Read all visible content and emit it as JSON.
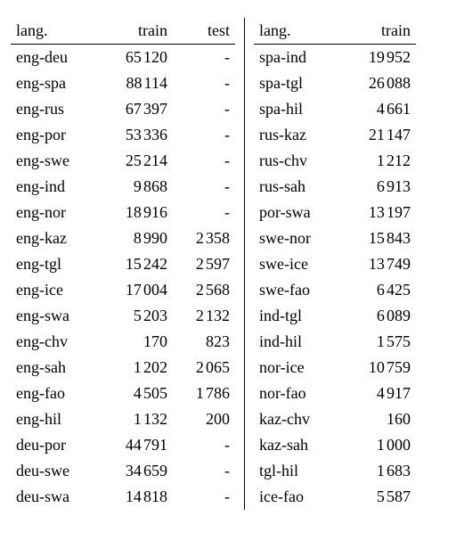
{
  "colors": {
    "text": "#000000",
    "rule": "#000000",
    "background": "#ffffff"
  },
  "typography": {
    "font_family": "Times New Roman",
    "fontsize_pt": 14
  },
  "layout": {
    "two_column": true,
    "left_cols": [
      "lang.",
      "train",
      "test"
    ],
    "right_cols": [
      "lang.",
      "train"
    ]
  },
  "headers": {
    "lang_left": "lang.",
    "train_left": "train",
    "test_left": "test",
    "lang_right": "lang.",
    "train_right": "train"
  },
  "thousand_separator": "thin-space",
  "left": [
    {
      "lang": "eng-deu",
      "train": 65120,
      "test": null
    },
    {
      "lang": "eng-spa",
      "train": 88114,
      "test": null
    },
    {
      "lang": "eng-rus",
      "train": 67397,
      "test": null
    },
    {
      "lang": "eng-por",
      "train": 53336,
      "test": null
    },
    {
      "lang": "eng-swe",
      "train": 25214,
      "test": null
    },
    {
      "lang": "eng-ind",
      "train": 9868,
      "test": null
    },
    {
      "lang": "eng-nor",
      "train": 18916,
      "test": null
    },
    {
      "lang": "eng-kaz",
      "train": 8990,
      "test": 2358
    },
    {
      "lang": "eng-tgl",
      "train": 15242,
      "test": 2597
    },
    {
      "lang": "eng-ice",
      "train": 17004,
      "test": 2568
    },
    {
      "lang": "eng-swa",
      "train": 5203,
      "test": 2132
    },
    {
      "lang": "eng-chv",
      "train": 170,
      "test": 823
    },
    {
      "lang": "eng-sah",
      "train": 1202,
      "test": 2065
    },
    {
      "lang": "eng-fao",
      "train": 4505,
      "test": 1786
    },
    {
      "lang": "eng-hil",
      "train": 1132,
      "test": 200
    },
    {
      "lang": "deu-por",
      "train": 44791,
      "test": null
    },
    {
      "lang": "deu-swe",
      "train": 34659,
      "test": null
    },
    {
      "lang": "deu-swa",
      "train": 14818,
      "test": null
    }
  ],
  "right": [
    {
      "lang": "spa-ind",
      "train": 19952
    },
    {
      "lang": "spa-tgl",
      "train": 26088
    },
    {
      "lang": "spa-hil",
      "train": 4661
    },
    {
      "lang": "rus-kaz",
      "train": 21147
    },
    {
      "lang": "rus-chv",
      "train": 1212
    },
    {
      "lang": "rus-sah",
      "train": 6913
    },
    {
      "lang": "por-swa",
      "train": 13197
    },
    {
      "lang": "swe-nor",
      "train": 15843
    },
    {
      "lang": "swe-ice",
      "train": 13749
    },
    {
      "lang": "swe-fao",
      "train": 6425
    },
    {
      "lang": "ind-tgl",
      "train": 6089
    },
    {
      "lang": "ind-hil",
      "train": 1575
    },
    {
      "lang": "nor-ice",
      "train": 10759
    },
    {
      "lang": "nor-fao",
      "train": 4917
    },
    {
      "lang": "kaz-chv",
      "train": 160
    },
    {
      "lang": "kaz-sah",
      "train": 1000
    },
    {
      "lang": "tgl-hil",
      "train": 1683
    },
    {
      "lang": "ice-fao",
      "train": 5587
    }
  ]
}
